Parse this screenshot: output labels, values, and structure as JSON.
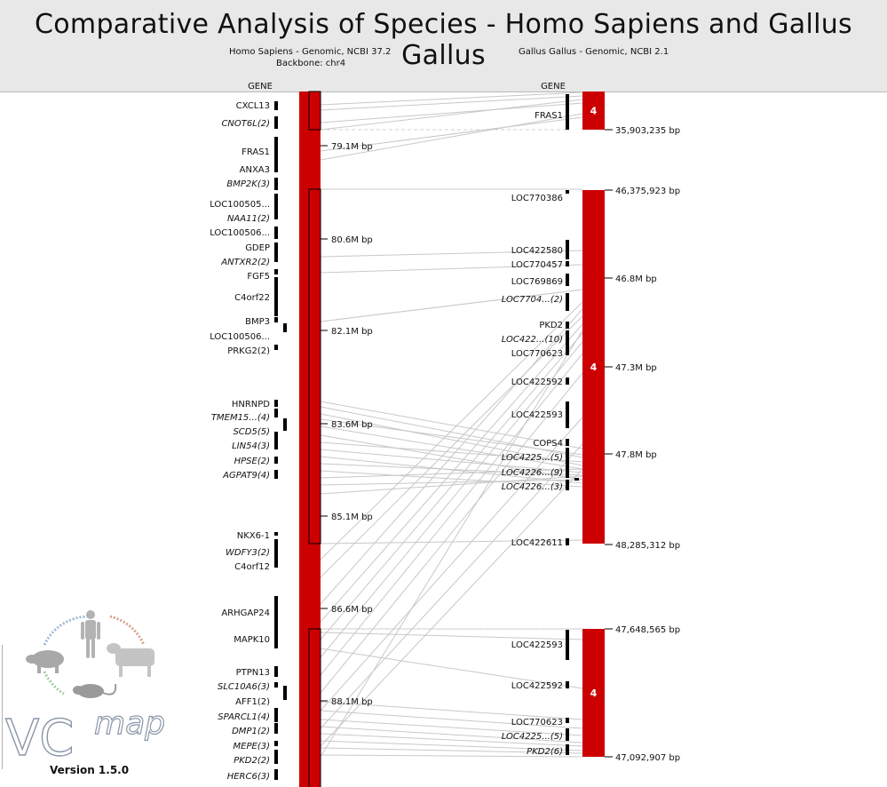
{
  "title": "Comparative Analysis of Species - Homo Sapiens and Gallus Gallus",
  "backbone": {
    "species_label": "Homo Sapiens - Genomic, NCBI 37.2",
    "backbone_label": "Backbone: chr4"
  },
  "comparative": {
    "species_label": "Gallus Gallus - Genomic, NCBI 2.1"
  },
  "gene_header": "GENE",
  "human_genes": [
    {
      "label": "CXCL13",
      "italic": false
    },
    {
      "label": "CNOT6L(2)",
      "italic": true
    },
    {
      "label": "FRAS1",
      "italic": false
    },
    {
      "label": "ANXA3",
      "italic": false
    },
    {
      "label": "BMP2K(3)",
      "italic": true
    },
    {
      "label": "LOC100505...",
      "italic": false
    },
    {
      "label": "NAA11(2)",
      "italic": true
    },
    {
      "label": "LOC100506...",
      "italic": false
    },
    {
      "label": "GDEP",
      "italic": false
    },
    {
      "label": "ANTXR2(2)",
      "italic": true
    },
    {
      "label": "FGF5",
      "italic": false
    },
    {
      "label": "C4orf22",
      "italic": false
    },
    {
      "label": "BMP3",
      "italic": false
    },
    {
      "label": "LOC100506...",
      "italic": false
    },
    {
      "label": "PRKG2(2)",
      "italic": false
    },
    {
      "label": "HNRNPD",
      "italic": false
    },
    {
      "label": "TMEM15...(4)",
      "italic": true
    },
    {
      "label": "SCD5(5)",
      "italic": true
    },
    {
      "label": "LIN54(3)",
      "italic": true
    },
    {
      "label": "HPSE(2)",
      "italic": true
    },
    {
      "label": "AGPAT9(4)",
      "italic": true
    },
    {
      "label": "NKX6-1",
      "italic": false
    },
    {
      "label": "WDFY3(2)",
      "italic": true
    },
    {
      "label": "C4orf12",
      "italic": false
    },
    {
      "label": "ARHGAP24",
      "italic": false
    },
    {
      "label": "MAPK10",
      "italic": false
    },
    {
      "label": "PTPN13",
      "italic": false
    },
    {
      "label": "SLC10A6(3)",
      "italic": true
    },
    {
      "label": "AFF1(2)",
      "italic": false
    },
    {
      "label": "SPARCL1(4)",
      "italic": true
    },
    {
      "label": "DMP1(2)",
      "italic": true
    },
    {
      "label": "MEPE(3)",
      "italic": true
    },
    {
      "label": "PKD2(2)",
      "italic": true
    },
    {
      "label": "HERC6(3)",
      "italic": true
    }
  ],
  "human_positions": [
    "79.1M bp",
    "80.6M bp",
    "82.1M bp",
    "83.6M bp",
    "85.1M bp",
    "86.6M bp",
    "88.1M bp"
  ],
  "chicken_genes": [
    {
      "label": "FRAS1",
      "italic": false
    },
    {
      "label": "LOC770386",
      "italic": false
    },
    {
      "label": "LOC422580",
      "italic": false
    },
    {
      "label": "LOC770457",
      "italic": false
    },
    {
      "label": "LOC769869",
      "italic": false
    },
    {
      "label": "LOC7704...(2)",
      "italic": true
    },
    {
      "label": "PKD2",
      "italic": false
    },
    {
      "label": "LOC422...(10)",
      "italic": true
    },
    {
      "label": "LOC770623",
      "italic": false
    },
    {
      "label": "LOC422592",
      "italic": false
    },
    {
      "label": "LOC422593",
      "italic": false
    },
    {
      "label": "COPS4",
      "italic": false
    },
    {
      "label": "LOC4225...(5)",
      "italic": true
    },
    {
      "label": "LOC4226...(9)",
      "italic": true
    },
    {
      "label": "LOC4226...(3)",
      "italic": true
    },
    {
      "label": "LOC422611",
      "italic": false
    },
    {
      "label": "LOC422593",
      "italic": false
    },
    {
      "label": "LOC422592",
      "italic": false
    },
    {
      "label": "LOC770623",
      "italic": false
    },
    {
      "label": "LOC4225...(5)",
      "italic": true
    },
    {
      "label": "PKD2(6)",
      "italic": true
    }
  ],
  "chicken_blocks": [
    {
      "chr": "4",
      "end_label": "35,903,235 bp"
    },
    {
      "chr": "4",
      "start_label": "46,375,923 bp",
      "end_label": "48,285,312 bp"
    },
    {
      "chr": "4",
      "start_label": "47,648,565 bp",
      "end_label": "47,092,907 bp"
    }
  ],
  "chicken_positions": [
    "46.8M bp",
    "47.3M bp",
    "47.8M bp"
  ],
  "colors": {
    "chromosome": "#cc0000",
    "gene_bar": "#000000",
    "synteny_line": "#c8c8c8",
    "header_bg": "#e8e8e8"
  },
  "logo": {
    "version": "Version 1.5.0",
    "icons": [
      "human-icon",
      "cow-icon",
      "rat-icon",
      "pig-icon"
    ]
  }
}
